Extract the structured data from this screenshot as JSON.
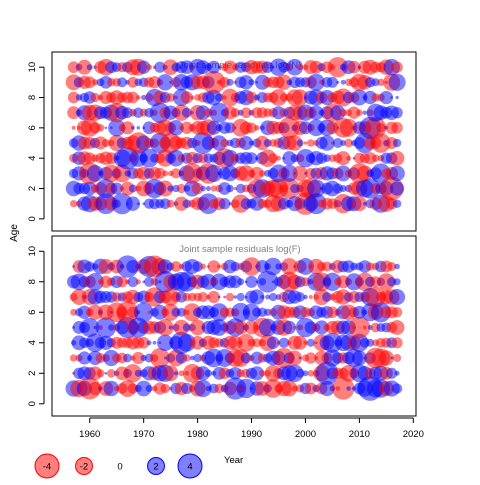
{
  "chart_data": {
    "type": "scatter",
    "colors": {
      "positive": "#0000ff",
      "negative": "#ff0000",
      "panel_title": "#808080"
    },
    "xaxis": {
      "label": "Year",
      "ticks": [
        1960,
        1970,
        1980,
        1990,
        2000,
        2010,
        2020
      ],
      "range": [
        1953,
        2020.5
      ]
    },
    "yaxis": {
      "label": "Age",
      "ticks": [
        0,
        2,
        4,
        6,
        8,
        10
      ],
      "range": [
        -0.8,
        11
      ]
    },
    "years": {
      "start": 1957,
      "end": 2017
    },
    "panels": [
      {
        "title": "Joint sample residuals log(N)",
        "ages": [
          1,
          2,
          3,
          4,
          5,
          6,
          7,
          8,
          9,
          10
        ],
        "seed": 11
      },
      {
        "title": "Joint sample residuals log(F)",
        "ages": [
          1,
          2,
          3,
          4,
          5,
          6,
          7,
          8,
          9
        ],
        "seed": 29
      }
    ],
    "legend": [
      {
        "label": "-4",
        "value": -4
      },
      {
        "label": "-2",
        "value": -2
      },
      {
        "label": "0",
        "value": 0
      },
      {
        "label": "2",
        "value": 2
      },
      {
        "label": "4",
        "value": 4
      }
    ],
    "legend_title": "Year"
  }
}
